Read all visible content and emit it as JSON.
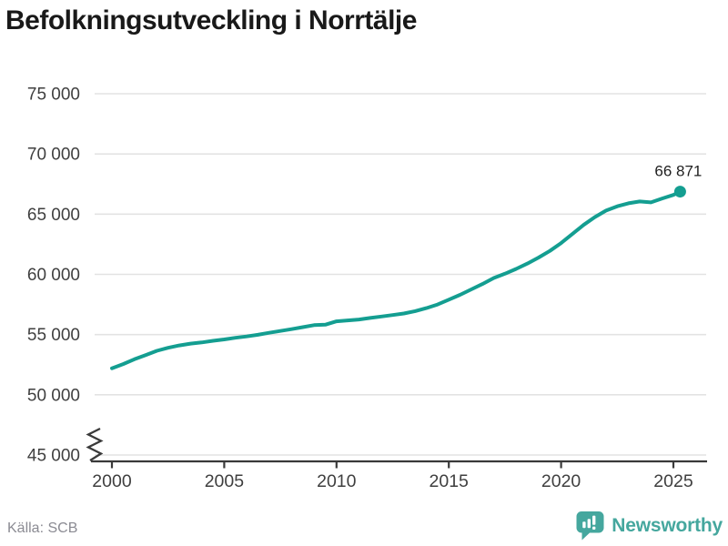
{
  "header": {
    "title": "Befolkningsutveckling i Norrtälje"
  },
  "chart_data": {
    "type": "line",
    "title": "Befolkningsutveckling i Norrtälje",
    "xlabel": "",
    "ylabel": "",
    "x_range": [
      2000,
      2025.3
    ],
    "y_range_displayed": [
      45000,
      75000
    ],
    "axis_break_at_bottom": true,
    "grid": "horizontal",
    "line_color": "#149e91",
    "grid_color": "#e3e3e3",
    "axis_color": "#3a3a3a",
    "x_ticks": [
      {
        "value": 2000,
        "label": "2000"
      },
      {
        "value": 2005,
        "label": "2005"
      },
      {
        "value": 2010,
        "label": "2010"
      },
      {
        "value": 2015,
        "label": "2015"
      },
      {
        "value": 2020,
        "label": "2020"
      },
      {
        "value": 2025,
        "label": "2025"
      }
    ],
    "y_ticks": [
      {
        "value": 45000,
        "label": "45 000"
      },
      {
        "value": 50000,
        "label": "50 000"
      },
      {
        "value": 55000,
        "label": "55 000"
      },
      {
        "value": 60000,
        "label": "60 000"
      },
      {
        "value": 65000,
        "label": "65 000"
      },
      {
        "value": 70000,
        "label": "70 000"
      },
      {
        "value": 75000,
        "label": "75 000"
      }
    ],
    "series": [
      {
        "name": "Befolkning i Norrtälje",
        "points": [
          [
            2000,
            52200
          ],
          [
            2000.5,
            52550
          ],
          [
            2001,
            52950
          ],
          [
            2001.5,
            53300
          ],
          [
            2002,
            53650
          ],
          [
            2002.5,
            53900
          ],
          [
            2003,
            54100
          ],
          [
            2003.5,
            54250
          ],
          [
            2004,
            54350
          ],
          [
            2004.5,
            54480
          ],
          [
            2005,
            54600
          ],
          [
            2005.5,
            54730
          ],
          [
            2006,
            54850
          ],
          [
            2006.5,
            54980
          ],
          [
            2007,
            55150
          ],
          [
            2007.5,
            55300
          ],
          [
            2008,
            55450
          ],
          [
            2008.5,
            55620
          ],
          [
            2009,
            55780
          ],
          [
            2009.5,
            55820
          ],
          [
            2010,
            56100
          ],
          [
            2010.5,
            56180
          ],
          [
            2011,
            56250
          ],
          [
            2011.5,
            56380
          ],
          [
            2012,
            56500
          ],
          [
            2012.5,
            56620
          ],
          [
            2013,
            56750
          ],
          [
            2013.5,
            56950
          ],
          [
            2014,
            57200
          ],
          [
            2014.5,
            57500
          ],
          [
            2015,
            57900
          ],
          [
            2015.5,
            58300
          ],
          [
            2016,
            58750
          ],
          [
            2016.5,
            59200
          ],
          [
            2017,
            59700
          ],
          [
            2017.5,
            60050
          ],
          [
            2018,
            60450
          ],
          [
            2018.5,
            60900
          ],
          [
            2019,
            61400
          ],
          [
            2019.5,
            61950
          ],
          [
            2020,
            62600
          ],
          [
            2020.5,
            63350
          ],
          [
            2021,
            64100
          ],
          [
            2021.5,
            64750
          ],
          [
            2022,
            65300
          ],
          [
            2022.5,
            65650
          ],
          [
            2023,
            65900
          ],
          [
            2023.5,
            66050
          ],
          [
            2024,
            65980
          ],
          [
            2024.5,
            66300
          ],
          [
            2025,
            66600
          ],
          [
            2025.3,
            66871
          ]
        ]
      }
    ],
    "end_point": {
      "x": 2025.3,
      "y": 66871
    },
    "end_label": "66 871",
    "legend": "none"
  },
  "footer": {
    "source": "Källa: SCB",
    "brand": "Newsworthy",
    "brand_color": "#45a79e"
  }
}
